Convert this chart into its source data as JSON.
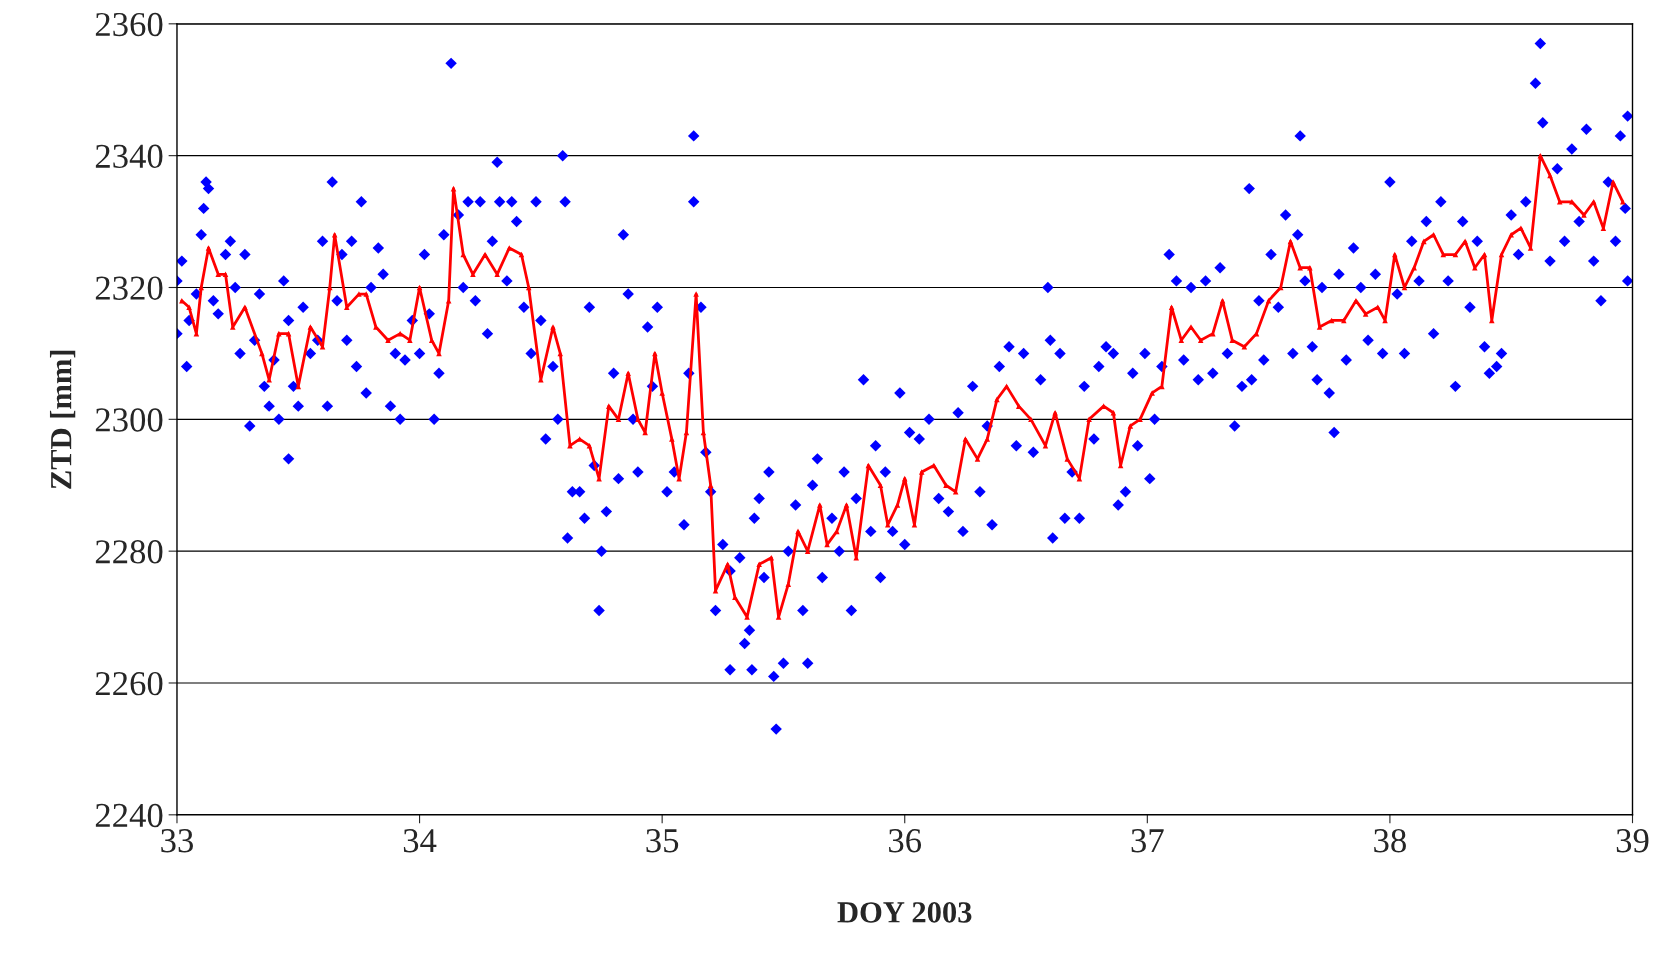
{
  "chart_data": {
    "type": "scatter",
    "xlabel": "DOY 2003",
    "ylabel": "ZTD [mm]",
    "xlim": [
      33,
      39
    ],
    "xticks": [
      33,
      34,
      35,
      36,
      37,
      38,
      39
    ],
    "ylim": [
      2240,
      2360
    ],
    "yticks": [
      2240,
      2260,
      2280,
      2300,
      2320,
      2340,
      2360
    ],
    "grid": "y",
    "legend": false,
    "series": [
      {
        "color": "#0000ff",
        "marker": "diamond",
        "x": [
          34.13,
          35.13,
          34.59,
          35.47,
          38.62,
          35.28,
          35.37,
          34.74,
          37.63,
          37.77,
          34.06,
          33.46,
          36.59,
          33.64,
          34.32,
          33.12,
          37.42,
          38.98,
          38.98,
          33.0,
          33.0,
          33.02,
          33.04,
          33.05,
          33.08,
          33.1,
          33.11,
          33.13,
          33.15,
          33.17,
          33.2,
          33.22,
          33.24,
          33.26,
          33.28,
          33.3,
          33.32,
          33.34,
          33.36,
          33.38,
          33.4,
          33.42,
          33.44,
          33.46,
          33.48,
          33.5,
          33.52,
          33.55,
          33.58,
          33.6,
          33.62,
          33.66,
          33.68,
          33.7,
          33.72,
          33.74,
          33.76,
          33.78,
          33.8,
          33.83,
          33.85,
          33.88,
          33.9,
          33.92,
          33.94,
          33.97,
          34.0,
          34.02,
          34.04,
          34.08,
          34.1,
          34.16,
          34.18,
          34.2,
          34.23,
          34.25,
          34.28,
          34.3,
          34.33,
          34.36,
          34.38,
          34.4,
          34.43,
          34.46,
          34.48,
          34.5,
          34.52,
          34.55,
          34.57,
          34.6,
          34.61,
          34.63,
          34.66,
          34.68,
          34.7,
          34.72,
          34.75,
          34.77,
          34.8,
          34.82,
          34.84,
          34.86,
          34.88,
          34.9,
          34.94,
          34.96,
          34.98,
          35.02,
          35.05,
          35.09,
          35.11,
          35.13,
          35.16,
          35.18,
          35.2,
          35.22,
          35.25,
          35.28,
          35.32,
          35.34,
          35.36,
          35.38,
          35.4,
          35.42,
          35.44,
          35.46,
          35.5,
          35.52,
          35.55,
          35.58,
          35.6,
          35.62,
          35.64,
          35.66,
          35.7,
          35.73,
          35.75,
          35.78,
          35.8,
          35.83,
          35.86,
          35.88,
          35.9,
          35.92,
          35.95,
          35.98,
          36.0,
          36.02,
          36.06,
          36.1,
          36.14,
          36.18,
          36.22,
          36.24,
          36.28,
          36.31,
          36.34,
          36.36,
          36.39,
          36.43,
          36.46,
          36.49,
          36.53,
          36.56,
          36.6,
          36.61,
          36.64,
          36.66,
          36.69,
          36.72,
          36.74,
          36.78,
          36.8,
          36.83,
          36.86,
          36.88,
          36.91,
          36.94,
          36.96,
          36.99,
          37.01,
          37.03,
          37.06,
          37.09,
          37.12,
          37.15,
          37.18,
          37.21,
          37.24,
          37.27,
          37.3,
          37.33,
          37.36,
          37.39,
          37.43,
          37.46,
          37.48,
          37.51,
          37.54,
          37.57,
          37.6,
          37.62,
          37.65,
          37.68,
          37.7,
          37.72,
          37.75,
          37.79,
          37.82,
          37.85,
          37.88,
          37.91,
          37.94,
          37.97,
          38.0,
          38.03,
          38.06,
          38.09,
          38.12,
          38.15,
          38.18,
          38.21,
          38.24,
          38.27,
          38.3,
          38.33,
          38.36,
          38.39,
          38.41,
          38.44,
          38.46,
          38.5,
          38.53,
          38.56,
          38.6,
          38.63,
          38.66,
          38.69,
          38.72,
          38.75,
          38.78,
          38.81,
          38.84,
          38.87,
          38.9,
          38.93,
          38.95,
          38.97
        ],
        "values": [
          2354,
          2343,
          2340,
          2253,
          2357,
          2262,
          2262,
          2271,
          2343,
          2298,
          2300,
          2294,
          2320,
          2336,
          2339,
          2336,
          2335,
          2346,
          2321,
          2321,
          2313,
          2324,
          2308,
          2315,
          2319,
          2328,
          2332,
          2335,
          2318,
          2316,
          2325,
          2327,
          2320,
          2310,
          2325,
          2299,
          2312,
          2319,
          2305,
          2302,
          2309,
          2300,
          2321,
          2315,
          2305,
          2302,
          2317,
          2310,
          2312,
          2327,
          2302,
          2318,
          2325,
          2312,
          2327,
          2308,
          2333,
          2304,
          2320,
          2326,
          2322,
          2302,
          2310,
          2300,
          2309,
          2315,
          2310,
          2325,
          2316,
          2307,
          2328,
          2331,
          2320,
          2333,
          2318,
          2333,
          2313,
          2327,
          2333,
          2321,
          2333,
          2330,
          2317,
          2310,
          2333,
          2315,
          2297,
          2308,
          2300,
          2333,
          2282,
          2289,
          2289,
          2285,
          2317,
          2293,
          2280,
          2286,
          2307,
          2291,
          2328,
          2319,
          2300,
          2292,
          2314,
          2305,
          2317,
          2289,
          2292,
          2284,
          2307,
          2333,
          2317,
          2295,
          2289,
          2271,
          2281,
          2277,
          2279,
          2266,
          2268,
          2285,
          2288,
          2276,
          2292,
          2261,
          2263,
          2280,
          2287,
          2271,
          2263,
          2290,
          2294,
          2276,
          2285,
          2280,
          2292,
          2271,
          2288,
          2306,
          2283,
          2296,
          2276,
          2292,
          2283,
          2304,
          2281,
          2298,
          2297,
          2300,
          2288,
          2286,
          2301,
          2283,
          2305,
          2289,
          2299,
          2284,
          2308,
          2311,
          2296,
          2310,
          2295,
          2306,
          2312,
          2282,
          2310,
          2285,
          2292,
          2285,
          2305,
          2297,
          2308,
          2311,
          2310,
          2287,
          2289,
          2307,
          2296,
          2310,
          2291,
          2300,
          2308,
          2325,
          2321,
          2309,
          2320,
          2306,
          2321,
          2307,
          2323,
          2310,
          2299,
          2305,
          2306,
          2318,
          2309,
          2325,
          2317,
          2331,
          2310,
          2328,
          2321,
          2311,
          2306,
          2320,
          2304,
          2322,
          2309,
          2326,
          2320,
          2312,
          2322,
          2310,
          2336,
          2319,
          2310,
          2327,
          2321,
          2330,
          2313,
          2333,
          2321,
          2305,
          2330,
          2317,
          2327,
          2311,
          2307,
          2308,
          2310,
          2331,
          2325,
          2333,
          2351,
          2345,
          2324,
          2338,
          2327,
          2341,
          2330,
          2344,
          2324,
          2318,
          2336,
          2327,
          2343,
          2332
        ]
      },
      {
        "type": "line",
        "color": "#ff0000",
        "marker": "triangle",
        "line_style": "solid",
        "x": [
          33.02,
          33.05,
          33.08,
          33.1,
          33.13,
          33.17,
          33.2,
          33.23,
          33.28,
          33.35,
          33.38,
          33.42,
          33.46,
          33.5,
          33.55,
          33.6,
          33.63,
          33.65,
          33.7,
          33.75,
          33.78,
          33.82,
          33.87,
          33.92,
          33.96,
          34.0,
          34.05,
          34.08,
          34.12,
          34.14,
          34.18,
          34.22,
          34.27,
          34.32,
          34.37,
          34.42,
          34.45,
          34.5,
          34.55,
          34.58,
          34.62,
          34.66,
          34.7,
          34.74,
          34.78,
          34.82,
          34.86,
          34.9,
          34.93,
          34.97,
          35.0,
          35.04,
          35.07,
          35.1,
          35.14,
          35.17,
          35.2,
          35.22,
          35.27,
          35.3,
          35.35,
          35.4,
          35.45,
          35.48,
          35.52,
          35.56,
          35.6,
          35.65,
          35.68,
          35.72,
          35.76,
          35.8,
          35.85,
          35.9,
          35.93,
          35.97,
          36.0,
          36.04,
          36.07,
          36.12,
          36.17,
          36.21,
          36.25,
          36.3,
          36.34,
          36.38,
          36.42,
          36.47,
          36.52,
          36.58,
          36.62,
          36.67,
          36.72,
          36.76,
          36.82,
          36.86,
          36.89,
          36.93,
          36.97,
          37.02,
          37.06,
          37.1,
          37.14,
          37.18,
          37.22,
          37.27,
          37.31,
          37.35,
          37.4,
          37.45,
          37.5,
          37.55,
          37.59,
          37.63,
          37.67,
          37.71,
          37.76,
          37.81,
          37.86,
          37.9,
          37.95,
          37.98,
          38.02,
          38.06,
          38.1,
          38.14,
          38.18,
          38.22,
          38.27,
          38.31,
          38.35,
          38.39,
          38.42,
          38.46,
          38.5,
          38.54,
          38.58,
          38.62,
          38.66,
          38.7,
          38.75,
          38.8,
          38.84,
          38.88,
          38.92,
          38.96
        ],
        "values": [
          2318,
          2317,
          2313,
          2320,
          2326,
          2322,
          2322,
          2314,
          2317,
          2310,
          2306,
          2313,
          2313,
          2305,
          2314,
          2311,
          2320,
          2328,
          2317,
          2319,
          2319,
          2314,
          2312,
          2313,
          2312,
          2320,
          2312,
          2310,
          2318,
          2335,
          2325,
          2322,
          2325,
          2322,
          2326,
          2325,
          2320,
          2306,
          2314,
          2310,
          2296,
          2297,
          2296,
          2291,
          2302,
          2300,
          2307,
          2300,
          2298,
          2310,
          2304,
          2297,
          2291,
          2298,
          2319,
          2298,
          2290,
          2274,
          2278,
          2273,
          2270,
          2278,
          2279,
          2270,
          2275,
          2283,
          2280,
          2287,
          2281,
          2283,
          2287,
          2279,
          2293,
          2290,
          2284,
          2287,
          2291,
          2284,
          2292,
          2293,
          2290,
          2289,
          2297,
          2294,
          2297,
          2303,
          2305,
          2302,
          2300,
          2296,
          2301,
          2294,
          2291,
          2300,
          2302,
          2301,
          2293,
          2299,
          2300,
          2304,
          2305,
          2317,
          2312,
          2314,
          2312,
          2313,
          2318,
          2312,
          2311,
          2313,
          2318,
          2320,
          2327,
          2323,
          2323,
          2314,
          2315,
          2315,
          2318,
          2316,
          2317,
          2315,
          2325,
          2320,
          2323,
          2327,
          2328,
          2325,
          2325,
          2327,
          2323,
          2325,
          2315,
          2325,
          2328,
          2329,
          2326,
          2340,
          2337,
          2333,
          2333,
          2331,
          2333,
          2329,
          2336,
          2333
        ]
      }
    ]
  }
}
